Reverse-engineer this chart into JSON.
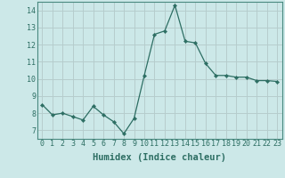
{
  "x": [
    0,
    1,
    2,
    3,
    4,
    5,
    6,
    7,
    8,
    9,
    10,
    11,
    12,
    13,
    14,
    15,
    16,
    17,
    18,
    19,
    20,
    21,
    22,
    23
  ],
  "y": [
    8.5,
    7.9,
    8.0,
    7.8,
    7.6,
    8.4,
    7.9,
    7.5,
    6.8,
    7.7,
    10.2,
    12.6,
    12.8,
    14.3,
    12.2,
    12.1,
    10.9,
    10.2,
    10.2,
    10.1,
    10.1,
    9.9,
    9.9,
    9.85
  ],
  "xlabel": "Humidex (Indice chaleur)",
  "ylabel": "",
  "xlim": [
    -0.5,
    23.5
  ],
  "ylim": [
    6.5,
    14.5
  ],
  "yticks": [
    7,
    8,
    9,
    10,
    11,
    12,
    13,
    14
  ],
  "xticks": [
    0,
    1,
    2,
    3,
    4,
    5,
    6,
    7,
    8,
    9,
    10,
    11,
    12,
    13,
    14,
    15,
    16,
    17,
    18,
    19,
    20,
    21,
    22,
    23
  ],
  "line_color": "#2d6e63",
  "marker_color": "#2d6e63",
  "bg_color": "#cce8e8",
  "grid_color_major": "#b0d0d0",
  "grid_color_minor": "#c5e0e0",
  "axis_label_color": "#2d6e63",
  "tick_label_color": "#2d6e63",
  "xlabel_fontsize": 7.5,
  "tick_fontsize": 6.0
}
